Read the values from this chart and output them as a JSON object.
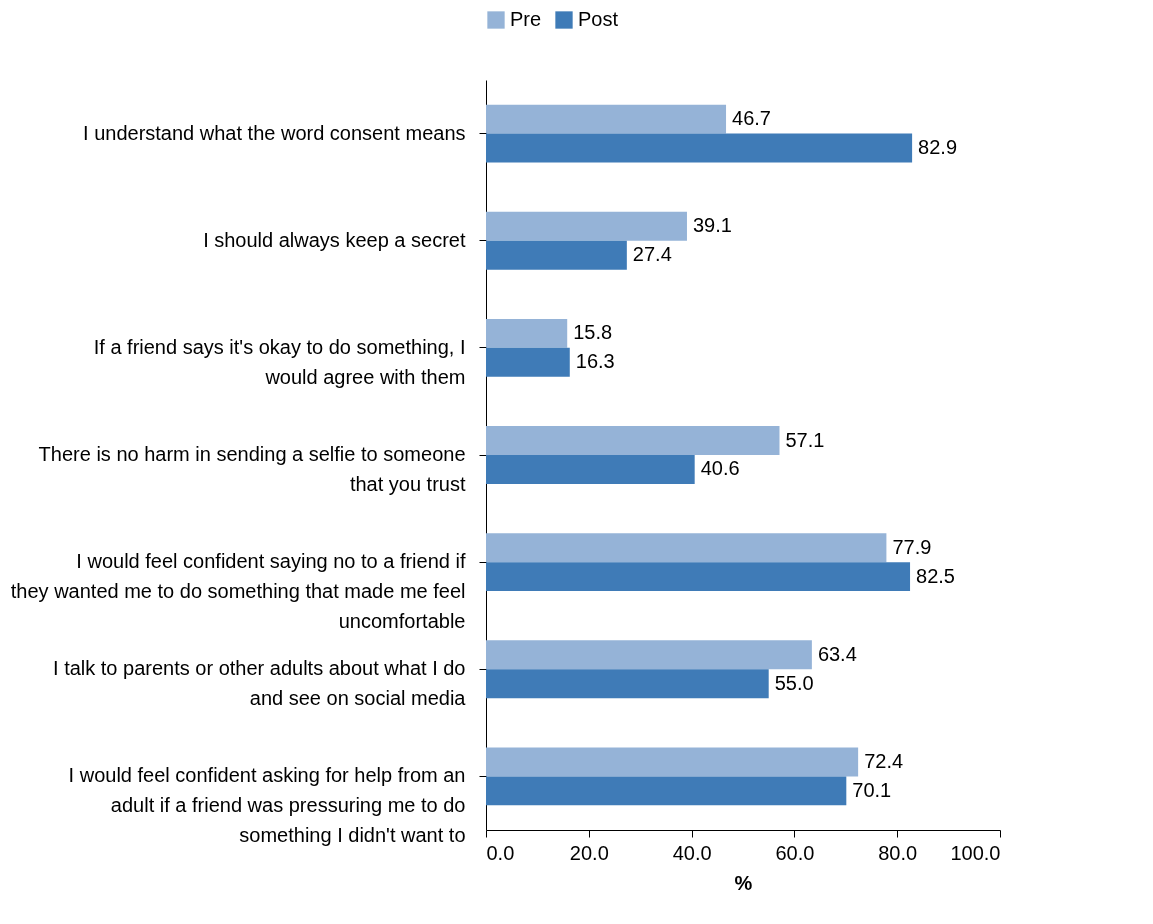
{
  "chart_data": {
    "type": "bar",
    "orientation": "horizontal",
    "xlabel": "%",
    "legend": "top",
    "categories": [
      "I understand what the word consent means",
      "I should always keep a secret",
      "If a friend says it's okay to do something, I would agree with them",
      "There is no harm in sending a selfie to someone that you trust",
      "I would feel confident saying no to a friend if they wanted me to do something that made me feel uncomfortable",
      "I talk to parents or other adults about what I do and see on social media",
      "I would feel confident asking for help from an adult if a friend was pressuring me to do something I didn't want to"
    ],
    "series": [
      {
        "name": "Pre",
        "color": "#95b3d7",
        "values": [
          46.7,
          39.1,
          15.8,
          57.1,
          77.9,
          63.4,
          72.4
        ],
        "value_labels": [
          "46.7",
          "39.1",
          "15.8",
          "57.1",
          "77.9",
          "63.4",
          "72.4"
        ]
      },
      {
        "name": "Post",
        "color": "#3f7bb7",
        "values": [
          82.9,
          27.4,
          16.3,
          40.6,
          82.5,
          55.0,
          70.1
        ],
        "value_labels": [
          "82.9",
          "27.4",
          "16.3",
          "40.6",
          "82.5",
          "55.0",
          "70.1"
        ]
      }
    ],
    "xlim": [
      0,
      100
    ],
    "xticks": [
      {
        "value": 0,
        "label": "0.0"
      },
      {
        "value": 20,
        "label": "20.0"
      },
      {
        "value": 40,
        "label": "40.0"
      },
      {
        "value": 60,
        "label": "60.0"
      },
      {
        "value": 80,
        "label": "80.0"
      },
      {
        "value": 100,
        "label": "100.0"
      }
    ],
    "grid": false
  }
}
